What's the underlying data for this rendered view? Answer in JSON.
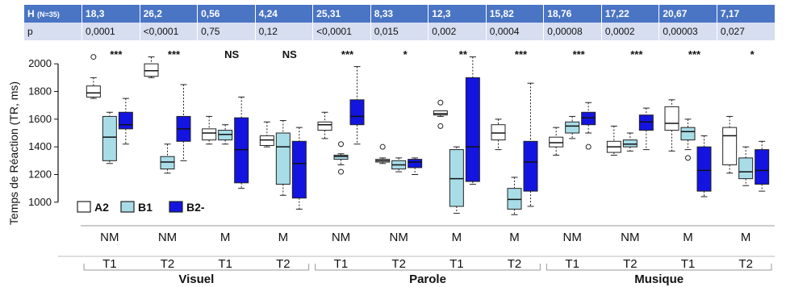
{
  "table": {
    "h_label": "H",
    "h_sub": "(N=35)",
    "p_label": "p",
    "h_values": [
      "18,3",
      "26,2",
      "0,56",
      "4,24",
      "25,31",
      "8,33",
      "12,3",
      "15,82",
      "18,76",
      "17,22",
      "20,67",
      "7,17"
    ],
    "p_values": [
      "0,0001",
      "<0,0001",
      "0,75",
      "0,12",
      "<0,0001",
      "0,015",
      "0,002",
      "0,0004",
      "0,00008",
      "0,0002",
      "0,00003",
      "0,027"
    ]
  },
  "chart_data": {
    "type": "box",
    "ylabel": "Temps de Réaction (TR, ms)",
    "ylim": [
      900,
      2100
    ],
    "yticks": [
      1000,
      1200,
      1400,
      1600,
      1800,
      2000
    ],
    "legend_position": "bottom-left",
    "series": [
      {
        "name": "A2",
        "color": "#ffffff"
      },
      {
        "name": "B1",
        "color": "#a8dde8"
      },
      {
        "name": "B2-",
        "color": "#1414e0"
      }
    ],
    "conditions": [
      {
        "condition": "NM",
        "time": "T1",
        "significance": "***",
        "boxes": [
          [
            1750,
            1760,
            1790,
            1840,
            1900
          ],
          [
            1280,
            1300,
            1470,
            1620,
            1650
          ],
          [
            1420,
            1530,
            1560,
            1650,
            1750
          ]
        ],
        "outliers": [
          [
            2050
          ],
          [],
          []
        ]
      },
      {
        "condition": "NM",
        "time": "T2",
        "significance": "***",
        "boxes": [
          [
            1900,
            1910,
            1950,
            2000,
            2050
          ],
          [
            1210,
            1240,
            1290,
            1330,
            1420
          ],
          [
            1300,
            1440,
            1530,
            1620,
            1850
          ]
        ],
        "outliers": [
          [],
          [],
          []
        ]
      },
      {
        "condition": "M",
        "time": "T1",
        "significance": "NS",
        "boxes": [
          [
            1420,
            1450,
            1500,
            1530,
            1620
          ],
          [
            1420,
            1450,
            1490,
            1520,
            1560
          ],
          [
            1100,
            1140,
            1380,
            1610,
            1760
          ]
        ],
        "outliers": [
          [],
          [],
          []
        ]
      },
      {
        "condition": "M",
        "time": "T2",
        "significance": "NS",
        "boxes": [
          [
            1400,
            1410,
            1450,
            1480,
            1580
          ],
          [
            1050,
            1130,
            1400,
            1500,
            1590
          ],
          [
            950,
            1030,
            1280,
            1440,
            1540
          ]
        ],
        "outliers": [
          [],
          [],
          []
        ]
      },
      {
        "condition": "NM",
        "time": "T1",
        "significance": "***",
        "boxes": [
          [
            1460,
            1520,
            1560,
            1580,
            1650
          ],
          [
            1270,
            1310,
            1330,
            1340,
            1350
          ],
          [
            1420,
            1560,
            1620,
            1740,
            1980
          ]
        ],
        "outliers": [
          [],
          [
            1220,
            1420
          ],
          []
        ]
      },
      {
        "condition": "NM",
        "time": "T2",
        "significance": "*",
        "boxes": [
          [
            1280,
            1290,
            1300,
            1310,
            1320
          ],
          [
            1220,
            1240,
            1270,
            1300,
            1320
          ],
          [
            1200,
            1250,
            1290,
            1310,
            1320
          ]
        ],
        "outliers": [
          [
            1400
          ],
          [],
          []
        ]
      },
      {
        "condition": "M",
        "time": "T1",
        "significance": "**",
        "boxes": [
          [
            1620,
            1630,
            1640,
            1660,
            1660
          ],
          [
            920,
            970,
            1170,
            1380,
            1400
          ],
          [
            1130,
            1150,
            1400,
            1900,
            2050
          ]
        ],
        "outliers": [
          [
            1550,
            1720
          ],
          [],
          []
        ]
      },
      {
        "condition": "M",
        "time": "T2",
        "significance": "***",
        "boxes": [
          [
            1380,
            1450,
            1500,
            1560,
            1600
          ],
          [
            910,
            950,
            1020,
            1100,
            1180
          ],
          [
            970,
            1080,
            1290,
            1440,
            1860
          ]
        ],
        "outliers": [
          [],
          [],
          []
        ]
      },
      {
        "condition": "NM",
        "time": "T1",
        "significance": "***",
        "boxes": [
          [
            1340,
            1400,
            1430,
            1470,
            1540
          ],
          [
            1460,
            1500,
            1550,
            1580,
            1620
          ],
          [
            1500,
            1560,
            1610,
            1650,
            1720
          ]
        ],
        "outliers": [
          [],
          [],
          [
            1400
          ]
        ]
      },
      {
        "condition": "NM",
        "time": "T2",
        "significance": "***",
        "boxes": [
          [
            1340,
            1360,
            1400,
            1440,
            1550
          ],
          [
            1370,
            1400,
            1420,
            1450,
            1500
          ],
          [
            1380,
            1520,
            1580,
            1630,
            1680
          ]
        ],
        "outliers": [
          [],
          [],
          []
        ]
      },
      {
        "condition": "M",
        "time": "T1",
        "significance": "***",
        "boxes": [
          [
            1370,
            1520,
            1570,
            1690,
            1740
          ],
          [
            1380,
            1450,
            1510,
            1540,
            1600
          ],
          [
            1040,
            1080,
            1230,
            1400,
            1480
          ]
        ],
        "outliers": [
          [],
          [
            1320
          ],
          []
        ]
      },
      {
        "condition": "M",
        "time": "T2",
        "significance": "*",
        "boxes": [
          [
            1210,
            1270,
            1480,
            1540,
            1620
          ],
          [
            1120,
            1170,
            1220,
            1320,
            1400
          ],
          [
            1080,
            1130,
            1230,
            1380,
            1440
          ]
        ],
        "outliers": [
          [],
          [],
          []
        ]
      }
    ],
    "groups": [
      "Visuel",
      "Parole",
      "Musique"
    ]
  }
}
